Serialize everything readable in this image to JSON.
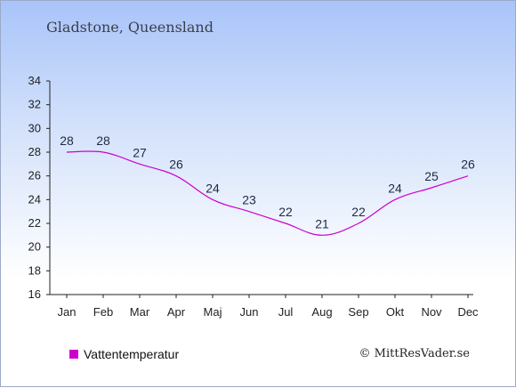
{
  "title": "Gladstone, Queensland",
  "credit": "© MittResVader.se",
  "colors": {
    "series": "#cc00cc",
    "axis": "#222222",
    "text": "#1e2a44"
  },
  "chart_data": {
    "type": "line",
    "title": "Gladstone, Queensland",
    "xlabel": "",
    "ylabel": "",
    "categories": [
      "Jan",
      "Feb",
      "Mar",
      "Apr",
      "Maj",
      "Jun",
      "Jul",
      "Aug",
      "Sep",
      "Okt",
      "Nov",
      "Dec"
    ],
    "series": [
      {
        "name": "Vattentemperatur",
        "values": [
          28,
          28,
          27,
          26,
          24,
          23,
          22,
          21,
          22,
          24,
          25,
          26
        ]
      }
    ],
    "data_labels": [
      "28",
      "28",
      "27",
      "26",
      "24",
      "23",
      "22",
      "21",
      "22",
      "24",
      "25",
      "26"
    ],
    "ylim": [
      16,
      34
    ],
    "yticks": [
      16,
      18,
      20,
      22,
      24,
      26,
      28,
      30,
      32,
      34
    ],
    "grid": false,
    "legend_position": "bottom-left"
  }
}
